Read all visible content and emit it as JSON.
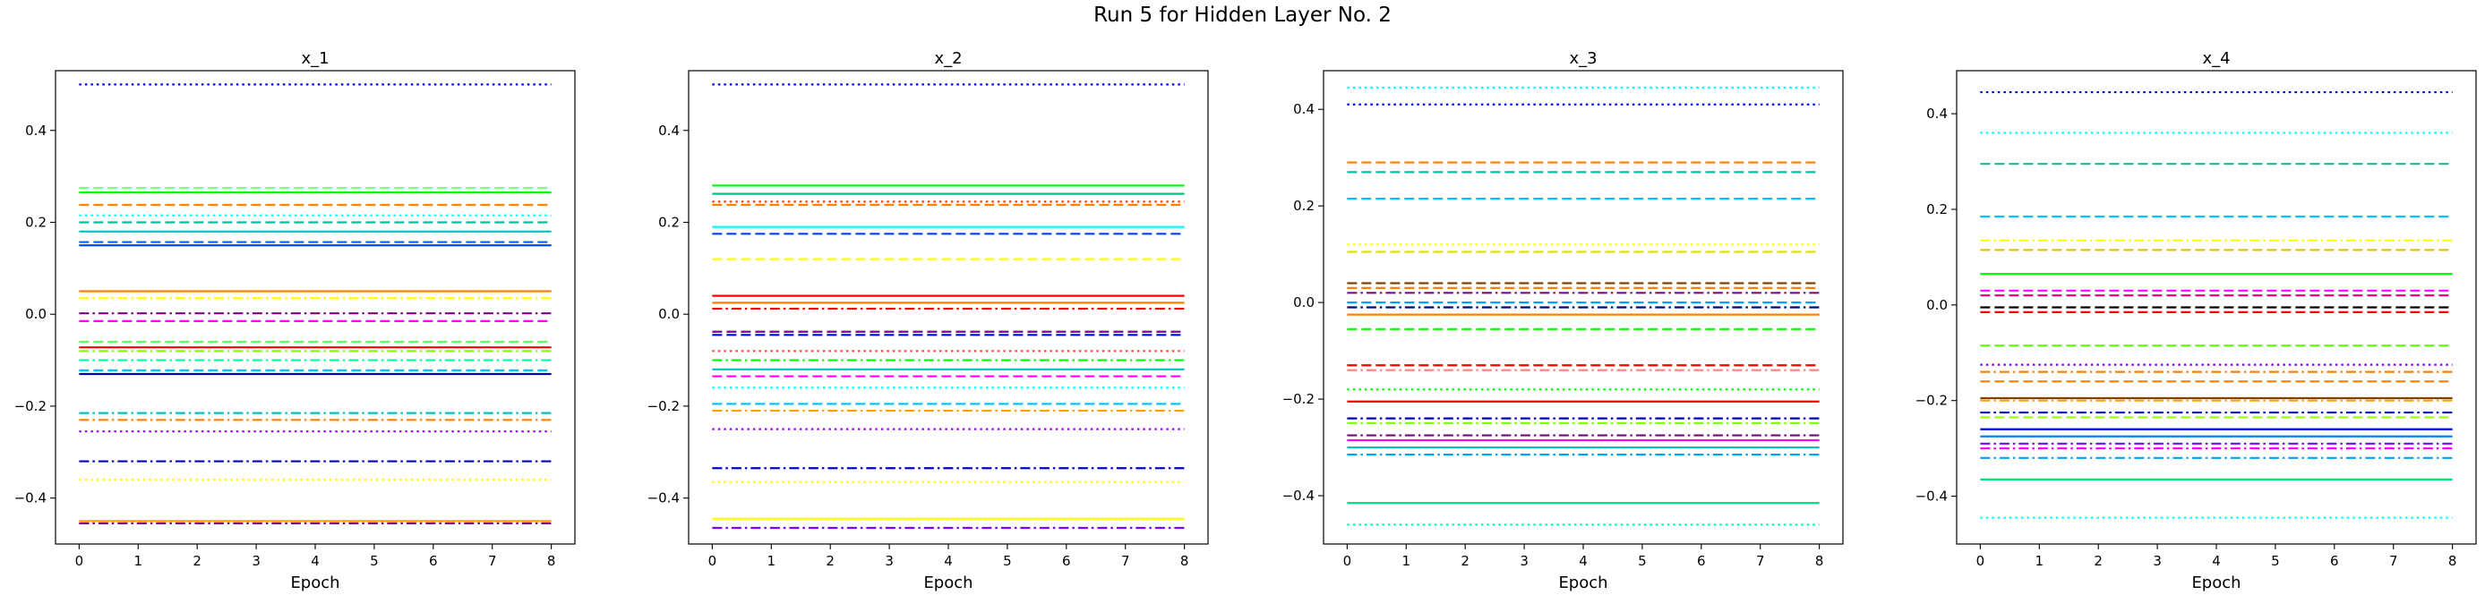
{
  "figure": {
    "suptitle": "Run 5 for Hidden Layer No. 2"
  },
  "chart_data": [
    {
      "type": "line",
      "title": "x_1",
      "xlabel": "Epoch",
      "ylabel": "",
      "x": [
        0,
        1,
        2,
        3,
        4,
        5,
        6,
        7,
        8
      ],
      "xlim": [
        -0.4,
        8.4
      ],
      "ylim": [
        -0.5,
        0.53
      ],
      "xticks": [
        "0",
        "1",
        "2",
        "3",
        "4",
        "5",
        "6",
        "7",
        "8"
      ],
      "yticks": [
        -0.4,
        -0.2,
        0.0,
        0.2,
        0.4
      ],
      "ytick_labels": [
        "−0.4",
        "−0.2",
        "0.0",
        "0.2",
        "0.4"
      ],
      "series": [
        {
          "value": 0.5,
          "color": "#0000ff",
          "style": "dotted"
        },
        {
          "value": 0.275,
          "color": "#80ff80",
          "style": "dashed"
        },
        {
          "value": 0.265,
          "color": "#00ff00",
          "style": "solid"
        },
        {
          "value": 0.238,
          "color": "#ff8000",
          "style": "dashed"
        },
        {
          "value": 0.215,
          "color": "#00ffff",
          "style": "dotted"
        },
        {
          "value": 0.2,
          "color": "#00bfa0",
          "style": "dashed"
        },
        {
          "value": 0.18,
          "color": "#00c8c8",
          "style": "solid"
        },
        {
          "value": 0.157,
          "color": "#0066ff",
          "style": "dashed"
        },
        {
          "value": 0.15,
          "color": "#0040ff",
          "style": "solid"
        },
        {
          "value": 0.05,
          "color": "#ff8000",
          "style": "solid"
        },
        {
          "value": 0.035,
          "color": "#ffff00",
          "style": "dashdot"
        },
        {
          "value": 0.002,
          "color": "#800080",
          "style": "dashdot"
        },
        {
          "value": -0.015,
          "color": "#ff00ff",
          "style": "dashed"
        },
        {
          "value": -0.06,
          "color": "#60ff60",
          "style": "dashed"
        },
        {
          "value": -0.072,
          "color": "#ff0000",
          "style": "solid"
        },
        {
          "value": -0.08,
          "color": "#80ff00",
          "style": "dashdot"
        },
        {
          "value": -0.1,
          "color": "#00ffa0",
          "style": "dashdot"
        },
        {
          "value": -0.13,
          "color": "#0000c0",
          "style": "solid"
        },
        {
          "value": -0.122,
          "color": "#00c0ff",
          "style": "dashed"
        },
        {
          "value": -0.215,
          "color": "#00c0c0",
          "style": "dashdot"
        },
        {
          "value": -0.23,
          "color": "#ff8000",
          "style": "dashdot"
        },
        {
          "value": -0.255,
          "color": "#a000ff",
          "style": "dotted"
        },
        {
          "value": -0.32,
          "color": "#0000c0",
          "style": "dashdot"
        },
        {
          "value": -0.36,
          "color": "#ffff00",
          "style": "dotted"
        },
        {
          "value": -0.45,
          "color": "#ffa000",
          "style": "solid"
        },
        {
          "value": -0.455,
          "color": "#800080",
          "style": "dashdot"
        }
      ]
    },
    {
      "type": "line",
      "title": "x_2",
      "xlabel": "Epoch",
      "ylabel": "",
      "x": [
        0,
        1,
        2,
        3,
        4,
        5,
        6,
        7,
        8
      ],
      "xlim": [
        -0.4,
        8.4
      ],
      "ylim": [
        -0.5,
        0.53
      ],
      "xticks": [
        "0",
        "1",
        "2",
        "3",
        "4",
        "5",
        "6",
        "7",
        "8"
      ],
      "yticks": [
        -0.4,
        -0.2,
        0.0,
        0.2,
        0.4
      ],
      "ytick_labels": [
        "−0.4",
        "−0.2",
        "0.0",
        "0.2",
        "0.4"
      ],
      "series": [
        {
          "value": 0.5,
          "color": "#0000ff",
          "style": "dotted"
        },
        {
          "value": 0.28,
          "color": "#00ff00",
          "style": "solid"
        },
        {
          "value": 0.262,
          "color": "#00c080",
          "style": "solid"
        },
        {
          "value": 0.245,
          "color": "#ff4000",
          "style": "dotted"
        },
        {
          "value": 0.238,
          "color": "#ff8000",
          "style": "dashed"
        },
        {
          "value": 0.19,
          "color": "#00ffff",
          "style": "solid"
        },
        {
          "value": 0.175,
          "color": "#0040ff",
          "style": "dashed"
        },
        {
          "value": 0.12,
          "color": "#ffff00",
          "style": "dashed"
        },
        {
          "value": 0.04,
          "color": "#ff0000",
          "style": "solid"
        },
        {
          "value": 0.025,
          "color": "#ff8000",
          "style": "solid"
        },
        {
          "value": 0.012,
          "color": "#ff0000",
          "style": "dashdot"
        },
        {
          "value": -0.038,
          "color": "#800080",
          "style": "dashed"
        },
        {
          "value": -0.045,
          "color": "#0000ff",
          "style": "dashed"
        },
        {
          "value": -0.08,
          "color": "#ff4040",
          "style": "dotted"
        },
        {
          "value": -0.1,
          "color": "#00ff00",
          "style": "dashdot"
        },
        {
          "value": -0.12,
          "color": "#00c0c0",
          "style": "solid"
        },
        {
          "value": -0.135,
          "color": "#ff00ff",
          "style": "dashed"
        },
        {
          "value": -0.16,
          "color": "#00ffff",
          "style": "dotted"
        },
        {
          "value": -0.195,
          "color": "#00c0ff",
          "style": "dashed"
        },
        {
          "value": -0.21,
          "color": "#ffa000",
          "style": "dashdot"
        },
        {
          "value": -0.25,
          "color": "#a000ff",
          "style": "dotted"
        },
        {
          "value": -0.335,
          "color": "#0000c0",
          "style": "dashdot"
        },
        {
          "value": -0.365,
          "color": "#ffff00",
          "style": "dotted"
        },
        {
          "value": -0.445,
          "color": "#ffff00",
          "style": "solid"
        },
        {
          "value": -0.465,
          "color": "#8000ff",
          "style": "dashdot"
        }
      ]
    },
    {
      "type": "line",
      "title": "x_3",
      "xlabel": "Epoch",
      "ylabel": "",
      "x": [
        0,
        1,
        2,
        3,
        4,
        5,
        6,
        7,
        8
      ],
      "xlim": [
        -0.4,
        8.4
      ],
      "ylim": [
        -0.5,
        0.48
      ],
      "xticks": [
        "0",
        "1",
        "2",
        "3",
        "4",
        "5",
        "6",
        "7",
        "8"
      ],
      "yticks": [
        -0.4,
        -0.2,
        0.0,
        0.2,
        0.4
      ],
      "ytick_labels": [
        "−0.4",
        "−0.2",
        "0.0",
        "0.2",
        "0.4"
      ],
      "series": [
        {
          "value": 0.445,
          "color": "#00ffff",
          "style": "dotted"
        },
        {
          "value": 0.41,
          "color": "#0000ff",
          "style": "dotted"
        },
        {
          "value": 0.29,
          "color": "#ff8000",
          "style": "dashed"
        },
        {
          "value": 0.27,
          "color": "#00c0a0",
          "style": "dashed"
        },
        {
          "value": 0.215,
          "color": "#00c0ff",
          "style": "dashed"
        },
        {
          "value": 0.12,
          "color": "#ffff00",
          "style": "dotted"
        },
        {
          "value": 0.105,
          "color": "#e0e000",
          "style": "dashed"
        },
        {
          "value": 0.04,
          "color": "#804000",
          "style": "dashed"
        },
        {
          "value": 0.03,
          "color": "#ff8000",
          "style": "dashed"
        },
        {
          "value": 0.02,
          "color": "#800080",
          "style": "dashdot"
        },
        {
          "value": 0.0,
          "color": "#00a0ff",
          "style": "dashed"
        },
        {
          "value": -0.01,
          "color": "#000080",
          "style": "dashdot"
        },
        {
          "value": -0.025,
          "color": "#ff8000",
          "style": "solid"
        },
        {
          "value": -0.055,
          "color": "#00ff00",
          "style": "dashed"
        },
        {
          "value": -0.13,
          "color": "#ff0000",
          "style": "dashed"
        },
        {
          "value": -0.14,
          "color": "#ff8080",
          "style": "dashdot"
        },
        {
          "value": -0.18,
          "color": "#00ff00",
          "style": "dotted"
        },
        {
          "value": -0.205,
          "color": "#ff0000",
          "style": "solid"
        },
        {
          "value": -0.24,
          "color": "#0000c0",
          "style": "dashdot"
        },
        {
          "value": -0.25,
          "color": "#80ff00",
          "style": "dashdot"
        },
        {
          "value": -0.275,
          "color": "#800080",
          "style": "dashdot"
        },
        {
          "value": -0.285,
          "color": "#ff00ff",
          "style": "solid"
        },
        {
          "value": -0.3,
          "color": "#00c0c0",
          "style": "solid"
        },
        {
          "value": -0.315,
          "color": "#00a0ff",
          "style": "dashdot"
        },
        {
          "value": -0.415,
          "color": "#00e080",
          "style": "solid"
        },
        {
          "value": -0.46,
          "color": "#00ffa0",
          "style": "dotted"
        }
      ]
    },
    {
      "type": "line",
      "title": "x_4",
      "xlabel": "Epoch",
      "ylabel": "",
      "x": [
        0,
        1,
        2,
        3,
        4,
        5,
        6,
        7,
        8
      ],
      "xlim": [
        -0.4,
        8.4
      ],
      "ylim": [
        -0.5,
        0.49
      ],
      "xticks": [
        "0",
        "1",
        "2",
        "3",
        "4",
        "5",
        "6",
        "7",
        "8"
      ],
      "yticks": [
        -0.4,
        -0.2,
        0.0,
        0.2,
        0.4
      ],
      "ytick_labels": [
        "−0.4",
        "−0.2",
        "0.0",
        "0.2",
        "0.4"
      ],
      "series": [
        {
          "value": 0.445,
          "color": "#0000c0",
          "style": "dotted"
        },
        {
          "value": 0.36,
          "color": "#00ffff",
          "style": "dotted"
        },
        {
          "value": 0.295,
          "color": "#00c0a0",
          "style": "dashed"
        },
        {
          "value": 0.185,
          "color": "#00c0ff",
          "style": "dashed"
        },
        {
          "value": 0.135,
          "color": "#ffff00",
          "style": "dashdot"
        },
        {
          "value": 0.115,
          "color": "#e0c000",
          "style": "dashed"
        },
        {
          "value": 0.065,
          "color": "#00ff00",
          "style": "solid"
        },
        {
          "value": 0.03,
          "color": "#ff00ff",
          "style": "dashed"
        },
        {
          "value": 0.02,
          "color": "#ff0080",
          "style": "dashed"
        },
        {
          "value": -0.005,
          "color": "#000000",
          "style": "dashed"
        },
        {
          "value": -0.015,
          "color": "#ff0000",
          "style": "dashed"
        },
        {
          "value": -0.085,
          "color": "#60ff00",
          "style": "dashed"
        },
        {
          "value": -0.125,
          "color": "#8000ff",
          "style": "dotted"
        },
        {
          "value": -0.14,
          "color": "#ff8000",
          "style": "dashdot"
        },
        {
          "value": -0.16,
          "color": "#ff8000",
          "style": "dashed"
        },
        {
          "value": -0.195,
          "color": "#804000",
          "style": "solid"
        },
        {
          "value": -0.2,
          "color": "#ffa000",
          "style": "dashdot"
        },
        {
          "value": -0.225,
          "color": "#0000c0",
          "style": "dashdot"
        },
        {
          "value": -0.235,
          "color": "#a0ff00",
          "style": "dashed"
        },
        {
          "value": -0.26,
          "color": "#0000ff",
          "style": "solid"
        },
        {
          "value": -0.275,
          "color": "#0080ff",
          "style": "solid"
        },
        {
          "value": -0.29,
          "color": "#8000ff",
          "style": "dashdot"
        },
        {
          "value": -0.3,
          "color": "#ff00ff",
          "style": "dashdot"
        },
        {
          "value": -0.32,
          "color": "#00a0ff",
          "style": "dashdot"
        },
        {
          "value": -0.365,
          "color": "#00e080",
          "style": "solid"
        },
        {
          "value": -0.445,
          "color": "#00ffff",
          "style": "dotted"
        }
      ]
    }
  ]
}
